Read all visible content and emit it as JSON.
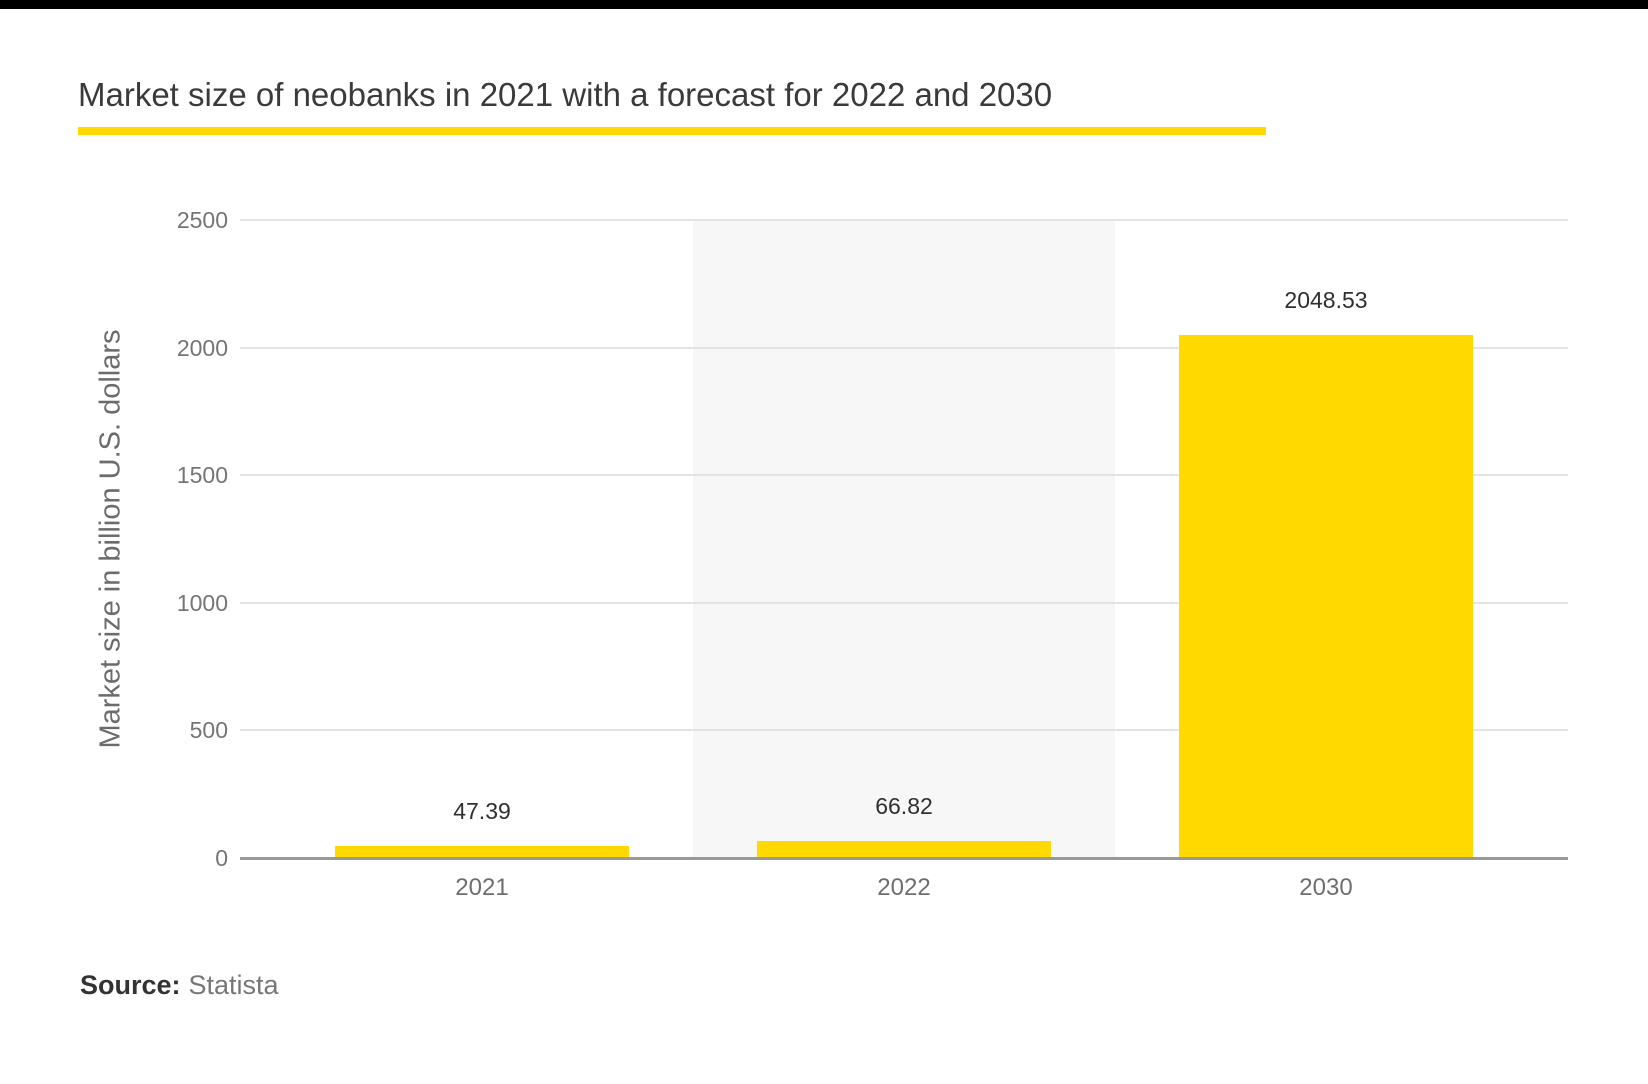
{
  "header": {
    "title": "Market size of neobanks in 2021 with a forecast for 2022 and 2030"
  },
  "chart_data": {
    "type": "bar",
    "title": "Market size of neobanks in 2021 with a forecast for 2022 and 2030",
    "categories": [
      "2021",
      "2022",
      "2030"
    ],
    "values": [
      47.39,
      66.82,
      2048.53
    ],
    "value_labels": [
      "47.39",
      "66.82",
      "2048.53"
    ],
    "xlabel": "",
    "ylabel": "Market size in billion U.S. dollars",
    "ylim": [
      0,
      2500
    ],
    "yticks": [
      0,
      500,
      1000,
      1500,
      2000,
      2500
    ],
    "grid": true,
    "legend": false,
    "bar_color": "#ffd900",
    "highlighted_category": "2022",
    "highlight_color": "#f7f7f7"
  },
  "colors": {
    "accent_yellow": "#ffd900",
    "top_bar": "#000000",
    "gridline": "#e3e3e3",
    "axis_line": "#999999"
  },
  "source": {
    "label": "Source:",
    "value": "Statista"
  }
}
